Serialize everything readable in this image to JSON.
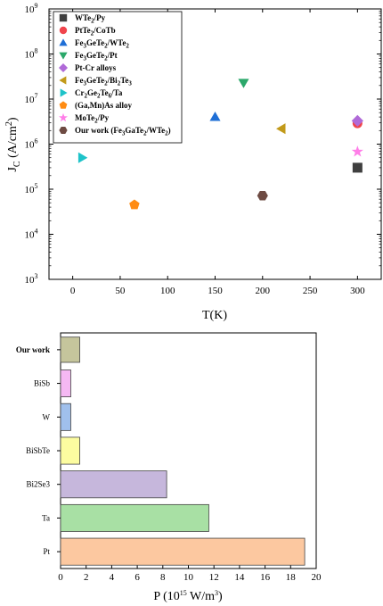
{
  "chart_data": [
    {
      "type": "scatter",
      "xlabel": "T(K)",
      "ylabel": "J",
      "ylabel_sub": "C",
      "ylabel_unit": " (A/cm",
      "ylabel_unit_sup": "2",
      "ylabel_unit_end": ")",
      "x_range": [
        -25,
        325
      ],
      "y_range_log10": [
        3,
        9
      ],
      "x_ticks": [
        "0",
        "50",
        "100",
        "150",
        "200",
        "250",
        "300"
      ],
      "y_ticks": [
        {
          "base": "10",
          "exp": "3"
        },
        {
          "base": "10",
          "exp": "4"
        },
        {
          "base": "10",
          "exp": "5"
        },
        {
          "base": "10",
          "exp": "6"
        },
        {
          "base": "10",
          "exp": "7"
        },
        {
          "base": "10",
          "exp": "8"
        },
        {
          "base": "10",
          "exp": "9"
        }
      ],
      "legend_position": "top-left",
      "series": [
        {
          "name": "WTe2/Py",
          "parts": [
            [
              "WTe",
              ""
            ],
            [
              "2",
              "sub"
            ],
            [
              "/Py",
              ""
            ]
          ],
          "marker": "square",
          "color": "#3f3f3f",
          "x": 300,
          "y": 300000
        },
        {
          "name": "PtTe2/CoTb",
          "parts": [
            [
              "PtTe",
              ""
            ],
            [
              "2",
              "sub"
            ],
            [
              "/CoTb",
              ""
            ]
          ],
          "marker": "circle",
          "color": "#f0444c",
          "x": 300,
          "y": 2900000
        },
        {
          "name": "Fe3GeTe2/WTe2",
          "parts": [
            [
              "Fe",
              ""
            ],
            [
              "3",
              "sub"
            ],
            [
              "GeTe",
              ""
            ],
            [
              "2",
              "sub"
            ],
            [
              "/WTe",
              ""
            ],
            [
              "2",
              "sub"
            ]
          ],
          "marker": "triangle-up",
          "color": "#1f6fd6",
          "x": 150,
          "y": 4000000
        },
        {
          "name": "Fe3GeTe2/Pt",
          "parts": [
            [
              "Fe",
              ""
            ],
            [
              "3",
              "sub"
            ],
            [
              "GeTe",
              ""
            ],
            [
              "2",
              "sub"
            ],
            [
              "/Pt",
              ""
            ]
          ],
          "marker": "triangle-down",
          "color": "#2ba86a",
          "x": 180,
          "y": 23000000
        },
        {
          "name": "Pt-Cr alloys",
          "parts": [
            [
              "Pt-Cr alloys",
              ""
            ]
          ],
          "marker": "diamond",
          "color": "#b06ad8",
          "x": 300,
          "y": 3300000
        },
        {
          "name": "Fe3GeTe2/Bi2Te3",
          "parts": [
            [
              "Fe",
              ""
            ],
            [
              "3",
              "sub"
            ],
            [
              "GeTe",
              ""
            ],
            [
              "2",
              "sub"
            ],
            [
              "/Bi",
              ""
            ],
            [
              "2",
              "sub"
            ],
            [
              "Te",
              ""
            ],
            [
              "3",
              "sub"
            ]
          ],
          "marker": "triangle-left",
          "color": "#c29a1a",
          "x": 220,
          "y": 2200000
        },
        {
          "name": "Cr2Ge2Te6/Ta",
          "parts": [
            [
              "Cr",
              ""
            ],
            [
              "2",
              "sub"
            ],
            [
              "Ge",
              ""
            ],
            [
              "2",
              "sub"
            ],
            [
              "Te",
              ""
            ],
            [
              "6",
              "sub"
            ],
            [
              "/Ta",
              ""
            ]
          ],
          "marker": "triangle-right",
          "color": "#1ec3c9",
          "x": 10,
          "y": 500000
        },
        {
          "name": "(Ga,Mn)As alloy",
          "parts": [
            [
              "(Ga,Mn)As alloy",
              ""
            ]
          ],
          "marker": "pentagon",
          "color": "#ff8c14",
          "x": 65,
          "y": 45000
        },
        {
          "name": "MoTe2/Py",
          "parts": [
            [
              "MoTe",
              ""
            ],
            [
              "2",
              "sub"
            ],
            [
              "/Py",
              ""
            ]
          ],
          "marker": "star",
          "color": "#ff7ee8",
          "x": 300,
          "y": 680000
        },
        {
          "name": "Our work (Fe3GaTe2/WTe2)",
          "parts": [
            [
              "Our work (Fe",
              ""
            ],
            [
              "3",
              "sub"
            ],
            [
              "GaTe",
              ""
            ],
            [
              "2",
              "sub"
            ],
            [
              "/WTe",
              ""
            ],
            [
              "2",
              "sub"
            ],
            [
              ")",
              ""
            ]
          ],
          "marker": "hexagon",
          "color": "#6e4b43",
          "x": 200,
          "y": 72000
        }
      ]
    },
    {
      "type": "bar",
      "orientation": "horizontal",
      "xlabel": "P (10",
      "xlabel_sup": "15",
      "xlabel_end": " W/m",
      "xlabel_sup2": "3",
      "xlabel_close": ")",
      "x_range": [
        0,
        20
      ],
      "x_ticks": [
        "0",
        "2",
        "4",
        "6",
        "8",
        "10",
        "12",
        "14",
        "16",
        "18",
        "20"
      ],
      "categories": [
        "Our work",
        "BiSb",
        "W",
        "BiSbTe",
        "Bi2Se3",
        "Ta",
        "Pt"
      ],
      "highlight_label_color": "#c0161b",
      "values": [
        1.5,
        0.8,
        0.8,
        1.5,
        8.3,
        11.6,
        19.1
      ],
      "colors": [
        "#c5c59c",
        "#f5b8f3",
        "#a0c0ec",
        "#fcfca0",
        "#c6b7dc",
        "#a8e0a4",
        "#fcc8a0"
      ]
    }
  ]
}
